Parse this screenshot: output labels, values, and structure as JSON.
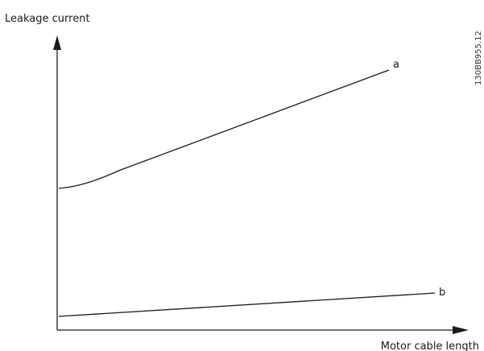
{
  "axes": {
    "y_label": "Leakage current",
    "x_label": "Motor cable length"
  },
  "curves": [
    {
      "label": "a"
    },
    {
      "label": "b"
    }
  ],
  "figure_code": "130BB955.12"
}
